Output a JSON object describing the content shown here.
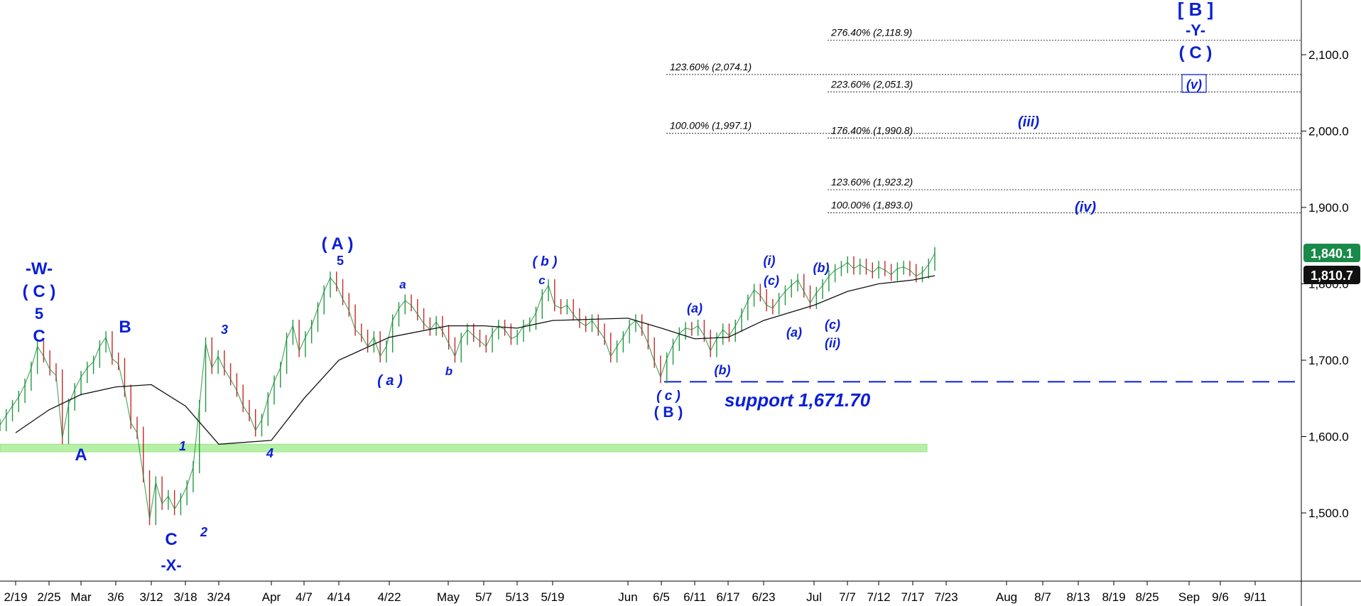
{
  "chart_data": {
    "type": "line",
    "title": "",
    "xlabel": "",
    "ylabel": "",
    "ylim": [
      1400,
      2180
    ],
    "y_ticks": [
      "1,500.0",
      "1,600.0",
      "1,700.0",
      "1,800.0",
      "1,900.0",
      "2,000.0",
      "2,100.0"
    ],
    "x_ticks": [
      "2/19",
      "2/25",
      "Mar",
      "3/6",
      "3/12",
      "3/18",
      "3/24",
      "Apr",
      "4/7",
      "4/14",
      "4/22",
      "May",
      "5/7",
      "5/13",
      "5/19",
      "Jun",
      "6/5",
      "6/11",
      "6/17",
      "6/23",
      "Jul",
      "7/7",
      "7/12",
      "7/17",
      "7/23",
      "Aug",
      "8/7",
      "8/13",
      "8/19",
      "8/25",
      "Sep",
      "9/6",
      "9/11"
    ],
    "price_labels": {
      "last": {
        "value": 1840.1,
        "label": "1,840.1",
        "color": "#1a8a4a"
      },
      "moving_average": {
        "value": 1810.7,
        "label": "1,810.7",
        "color": "#111111"
      }
    },
    "series": [
      {
        "color": "#1a8a3a",
        "points": [
          {
            "x": "2/19",
            "y": 1615
          },
          {
            "x": "2/20",
            "y": 1628
          },
          {
            "x": "2/21",
            "y": 1640
          },
          {
            "x": "2/22",
            "y": 1652
          },
          {
            "x": "2/23",
            "y": 1668
          },
          {
            "x": "2/24",
            "y": 1690
          },
          {
            "x": "2/25",
            "y": 1718
          },
          {
            "x": "2/26",
            "y": 1705
          },
          {
            "x": "2/27",
            "y": 1688
          },
          {
            "x": "2/28",
            "y": 1680
          },
          {
            "x": "Mar",
            "y": 1598
          },
          {
            "x": "3/2",
            "y": 1642
          },
          {
            "x": "3/3",
            "y": 1662
          },
          {
            "x": "3/4",
            "y": 1678
          },
          {
            "x": "3/5",
            "y": 1690
          },
          {
            "x": "3/6",
            "y": 1698
          },
          {
            "x": "3/7",
            "y": 1718
          },
          {
            "x": "3/8",
            "y": 1730
          },
          {
            "x": "3/9",
            "y": 1702
          },
          {
            "x": "3/10",
            "y": 1695
          },
          {
            "x": "3/11",
            "y": 1660
          },
          {
            "x": "3/12",
            "y": 1618
          },
          {
            "x": "3/13",
            "y": 1605
          },
          {
            "x": "3/14",
            "y": 1548
          },
          {
            "x": "3/15",
            "y": 1492
          },
          {
            "x": "3/16",
            "y": 1540
          },
          {
            "x": "3/17",
            "y": 1512
          },
          {
            "x": "3/18",
            "y": 1522
          },
          {
            "x": "3/19",
            "y": 1505
          },
          {
            "x": "3/20",
            "y": 1518
          },
          {
            "x": "3/21",
            "y": 1535
          },
          {
            "x": "3/22",
            "y": 1560
          },
          {
            "x": "3/23",
            "y": 1640
          },
          {
            "x": "3/24",
            "y": 1722
          },
          {
            "x": "3/25",
            "y": 1690
          },
          {
            "x": "3/26",
            "y": 1705
          },
          {
            "x": "3/27",
            "y": 1688
          },
          {
            "x": "3/28",
            "y": 1675
          },
          {
            "x": "3/29",
            "y": 1660
          },
          {
            "x": "3/30",
            "y": 1640
          },
          {
            "x": "3/31",
            "y": 1628
          },
          {
            "x": "Apr",
            "y": 1608
          },
          {
            "x": "4/2",
            "y": 1622
          },
          {
            "x": "4/3",
            "y": 1650
          },
          {
            "x": "4/4",
            "y": 1672
          },
          {
            "x": "4/5",
            "y": 1690
          },
          {
            "x": "4/6",
            "y": 1728
          },
          {
            "x": "4/7",
            "y": 1745
          },
          {
            "x": "4/8",
            "y": 1712
          },
          {
            "x": "4/9",
            "y": 1730
          },
          {
            "x": "4/10",
            "y": 1745
          },
          {
            "x": "4/11",
            "y": 1768
          },
          {
            "x": "4/12",
            "y": 1790
          },
          {
            "x": "4/13",
            "y": 1808
          },
          {
            "x": "4/14",
            "y": 1798
          },
          {
            "x": "4/15",
            "y": 1780
          },
          {
            "x": "4/16",
            "y": 1765
          },
          {
            "x": "4/17",
            "y": 1740
          },
          {
            "x": "4/18",
            "y": 1732
          },
          {
            "x": "4/19",
            "y": 1718
          },
          {
            "x": "4/20",
            "y": 1730
          },
          {
            "x": "4/21",
            "y": 1705
          },
          {
            "x": "4/22",
            "y": 1718
          },
          {
            "x": "4/23",
            "y": 1752
          },
          {
            "x": "4/24",
            "y": 1768
          },
          {
            "x": "4/25",
            "y": 1778
          },
          {
            "x": "4/26",
            "y": 1772
          },
          {
            "x": "4/27",
            "y": 1760
          },
          {
            "x": "4/28",
            "y": 1748
          },
          {
            "x": "4/29",
            "y": 1740
          },
          {
            "x": "4/30",
            "y": 1750
          },
          {
            "x": "May",
            "y": 1738
          },
          {
            "x": "5/2",
            "y": 1722
          },
          {
            "x": "5/3",
            "y": 1705
          },
          {
            "x": "5/4",
            "y": 1728
          },
          {
            "x": "5/5",
            "y": 1740
          },
          {
            "x": "5/6",
            "y": 1732
          },
          {
            "x": "5/7",
            "y": 1725
          },
          {
            "x": "5/8",
            "y": 1718
          },
          {
            "x": "5/9",
            "y": 1735
          },
          {
            "x": "5/10",
            "y": 1745
          },
          {
            "x": "5/11",
            "y": 1740
          },
          {
            "x": "5/12",
            "y": 1728
          },
          {
            "x": "5/13",
            "y": 1732
          },
          {
            "x": "5/14",
            "y": 1745
          },
          {
            "x": "5/15",
            "y": 1748
          },
          {
            "x": "5/16",
            "y": 1762
          },
          {
            "x": "5/17",
            "y": 1785
          },
          {
            "x": "5/18",
            "y": 1798
          },
          {
            "x": "5/19",
            "y": 1772
          },
          {
            "x": "5/20",
            "y": 1768
          },
          {
            "x": "5/21",
            "y": 1772
          },
          {
            "x": "5/22",
            "y": 1760
          },
          {
            "x": "5/23",
            "y": 1750
          },
          {
            "x": "5/24",
            "y": 1745
          },
          {
            "x": "5/25",
            "y": 1752
          },
          {
            "x": "5/26",
            "y": 1740
          },
          {
            "x": "5/27",
            "y": 1728
          },
          {
            "x": "5/28",
            "y": 1705
          },
          {
            "x": "5/29",
            "y": 1718
          },
          {
            "x": "5/30",
            "y": 1730
          },
          {
            "x": "5/31",
            "y": 1745
          },
          {
            "x": "Jun",
            "y": 1752
          },
          {
            "x": "6/2",
            "y": 1740
          },
          {
            "x": "6/3",
            "y": 1722
          },
          {
            "x": "6/4",
            "y": 1698
          },
          {
            "x": "6/5",
            "y": 1678
          },
          {
            "x": "6/6",
            "y": 1702
          },
          {
            "x": "6/7",
            "y": 1720
          },
          {
            "x": "6/8",
            "y": 1735
          },
          {
            "x": "6/9",
            "y": 1742
          },
          {
            "x": "6/10",
            "y": 1740
          },
          {
            "x": "6/11",
            "y": 1745
          },
          {
            "x": "6/12",
            "y": 1732
          },
          {
            "x": "6/13",
            "y": 1712
          },
          {
            "x": "6/14",
            "y": 1728
          },
          {
            "x": "6/15",
            "y": 1740
          },
          {
            "x": "6/16",
            "y": 1732
          },
          {
            "x": "6/17",
            "y": 1745
          },
          {
            "x": "6/18",
            "y": 1760
          },
          {
            "x": "6/19",
            "y": 1778
          },
          {
            "x": "6/20",
            "y": 1792
          },
          {
            "x": "6/21",
            "y": 1785
          },
          {
            "x": "6/22",
            "y": 1772
          },
          {
            "x": "6/23",
            "y": 1768
          },
          {
            "x": "6/24",
            "y": 1780
          },
          {
            "x": "6/25",
            "y": 1790
          },
          {
            "x": "6/26",
            "y": 1798
          },
          {
            "x": "6/27",
            "y": 1805
          },
          {
            "x": "6/28",
            "y": 1790
          },
          {
            "x": "6/29",
            "y": 1775
          },
          {
            "x": "6/30",
            "y": 1788
          },
          {
            "x": "Jul",
            "y": 1798
          },
          {
            "x": "7/2",
            "y": 1810
          },
          {
            "x": "7/3",
            "y": 1818
          },
          {
            "x": "7/4",
            "y": 1822
          },
          {
            "x": "7/5",
            "y": 1828
          },
          {
            "x": "7/6",
            "y": 1820
          },
          {
            "x": "7/7",
            "y": 1825
          },
          {
            "x": "7/8",
            "y": 1820
          },
          {
            "x": "7/9",
            "y": 1815
          },
          {
            "x": "7/10",
            "y": 1822
          },
          {
            "x": "7/11",
            "y": 1818
          },
          {
            "x": "7/12",
            "y": 1812
          },
          {
            "x": "7/13",
            "y": 1820
          },
          {
            "x": "7/14",
            "y": 1822
          },
          {
            "x": "7/15",
            "y": 1818
          },
          {
            "x": "7/16",
            "y": 1810
          },
          {
            "x": "7/17",
            "y": 1815
          },
          {
            "x": "7/18",
            "y": 1825
          },
          {
            "x": "7/19",
            "y": 1840.1
          }
        ]
      },
      {
        "color": "#111111",
        "points": [
          {
            "x": "2/19",
            "y": 1605
          },
          {
            "x": "2/25",
            "y": 1635
          },
          {
            "x": "Mar",
            "y": 1655
          },
          {
            "x": "3/6",
            "y": 1665
          },
          {
            "x": "3/12",
            "y": 1668
          },
          {
            "x": "3/18",
            "y": 1640
          },
          {
            "x": "3/24",
            "y": 1590
          },
          {
            "x": "Apr",
            "y": 1595
          },
          {
            "x": "4/7",
            "y": 1650
          },
          {
            "x": "4/14",
            "y": 1700
          },
          {
            "x": "4/22",
            "y": 1730
          },
          {
            "x": "May",
            "y": 1745
          },
          {
            "x": "5/7",
            "y": 1745
          },
          {
            "x": "5/13",
            "y": 1742
          },
          {
            "x": "5/19",
            "y": 1752
          },
          {
            "x": "Jun",
            "y": 1755
          },
          {
            "x": "6/5",
            "y": 1742
          },
          {
            "x": "6/11",
            "y": 1728
          },
          {
            "x": "6/17",
            "y": 1730
          },
          {
            "x": "6/23",
            "y": 1752
          },
          {
            "x": "Jul",
            "y": 1772
          },
          {
            "x": "7/7",
            "y": 1790
          },
          {
            "x": "7/12",
            "y": 1800
          },
          {
            "x": "7/17",
            "y": 1805
          },
          {
            "x": "7/19",
            "y": 1810.7
          }
        ]
      }
    ],
    "fibonacci_levels": [
      {
        "label": "276.40% (2,118.9)",
        "value": 2118.9
      },
      {
        "label": "123.60% (2,074.1)",
        "value": 2074.1
      },
      {
        "label": "223.60% (2,051.3)",
        "value": 2051.3
      },
      {
        "label": "100.00% (1,997.1)",
        "value": 1997.1
      },
      {
        "label": "176.40% (1,990.8)",
        "value": 1990.8
      },
      {
        "label": "123.60% (1,923.2)",
        "value": 1923.2
      },
      {
        "label": "100.00% (1,893.0)",
        "value": 1893.0
      }
    ],
    "support": {
      "label": "support 1,671.70",
      "value": 1671.7,
      "from": "6/5",
      "color": "#0a1fd6"
    },
    "zone": {
      "from": "2/19",
      "to": "7/19",
      "low": 1580,
      "high": 1590,
      "color": "#b6f0a6"
    },
    "wave_labels": [
      "-W-",
      "( C )",
      "5",
      "C",
      "A",
      "B",
      "1",
      "C",
      "-X-",
      "2",
      "3",
      "4",
      "( A )",
      "5",
      "a",
      "( a )",
      "b",
      "( b )",
      "c",
      "( c )",
      "( B )",
      "(a)",
      "(b)",
      "(i)",
      "(c)",
      "(a)",
      "(b)",
      "(c)",
      "(ii)",
      "(iii)",
      "(iv)",
      "[ B ]",
      "-Y-",
      "( C )",
      "(v)"
    ]
  }
}
